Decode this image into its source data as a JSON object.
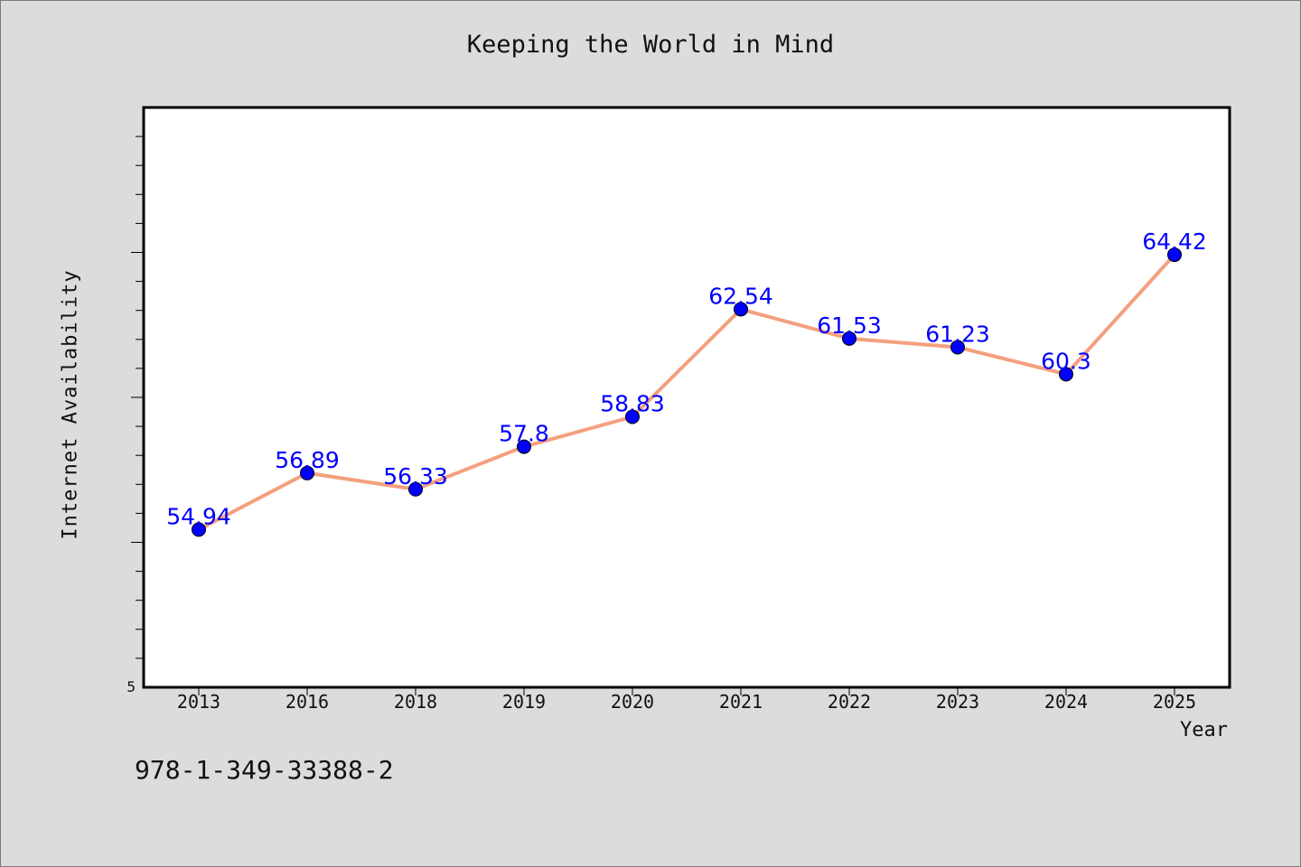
{
  "chart_data": {
    "type": "line",
    "title": "Keeping the World in Mind",
    "xlabel": "Year",
    "ylabel": "Internet Availability",
    "categories": [
      "2013",
      "2016",
      "2018",
      "2019",
      "2020",
      "2021",
      "2022",
      "2023",
      "2024",
      "2025"
    ],
    "series": [
      {
        "values": [
          54.94,
          56.89,
          56.33,
          57.8,
          58.83,
          62.54,
          61.53,
          61.23,
          60.3,
          64.42
        ],
        "data_labels": [
          "54.94",
          "56.89",
          "56.33",
          "57.8",
          "58.83",
          "62.54",
          "61.53",
          "61.23",
          "60.3",
          "64.42"
        ]
      }
    ],
    "y_tick_labels": [
      "5"
    ],
    "ylim": [
      49.5,
      69.5
    ],
    "grid": false,
    "line_color": "#f4a07e",
    "marker_color": "#0000ff",
    "label_color": "#0000ff"
  },
  "footer_text": "978-1-349-33388-2"
}
